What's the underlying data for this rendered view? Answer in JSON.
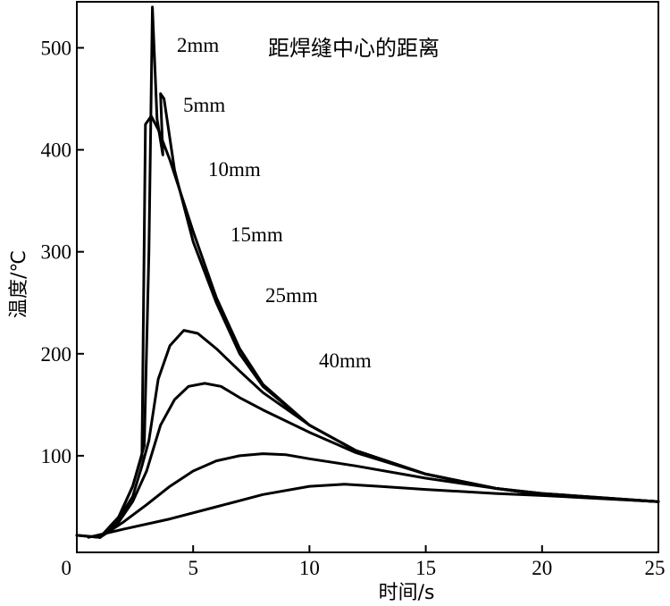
{
  "chart_data": {
    "type": "line",
    "title": "距焊缝中心的距离",
    "xlabel": "时间/s",
    "ylabel": "温度/℃",
    "xlim": [
      0,
      25
    ],
    "ylim": [
      0,
      545
    ],
    "xticks": [
      0,
      5,
      10,
      15,
      20,
      25
    ],
    "yticks": [
      100,
      200,
      300,
      400,
      500
    ],
    "grid": false,
    "legend": "none",
    "annotations": [
      "2mm",
      "5mm",
      "10mm",
      "15mm",
      "25mm",
      "40mm"
    ],
    "series": [
      {
        "name": "2mm",
        "points": [
          [
            0,
            22
          ],
          [
            1,
            20
          ],
          [
            1.8,
            40
          ],
          [
            2.4,
            70
          ],
          [
            2.9,
            110
          ],
          [
            3.1,
            300
          ],
          [
            3.25,
            540
          ],
          [
            3.45,
            430
          ],
          [
            3.7,
            395
          ],
          [
            3.6,
            455
          ],
          [
            3.75,
            450
          ],
          [
            4.2,
            380
          ],
          [
            5,
            310
          ],
          [
            6,
            250
          ],
          [
            7,
            200
          ],
          [
            8,
            168
          ],
          [
            10,
            130
          ],
          [
            12,
            105
          ],
          [
            15,
            82
          ],
          [
            18,
            68
          ],
          [
            20,
            63
          ],
          [
            25,
            55
          ]
        ]
      },
      {
        "name": "5mm",
        "points": [
          [
            0,
            22
          ],
          [
            1,
            20
          ],
          [
            1.8,
            40
          ],
          [
            2.4,
            70
          ],
          [
            2.8,
            100
          ],
          [
            2.95,
            425
          ],
          [
            3.2,
            433
          ],
          [
            3.5,
            420
          ],
          [
            4,
            390
          ],
          [
            4.5,
            355
          ],
          [
            5,
            320
          ],
          [
            6,
            255
          ],
          [
            7,
            205
          ],
          [
            8,
            170
          ],
          [
            10,
            130
          ],
          [
            12,
            105
          ],
          [
            15,
            82
          ],
          [
            18,
            68
          ],
          [
            20,
            63
          ],
          [
            25,
            55
          ]
        ]
      },
      {
        "name": "10mm",
        "points": [
          [
            1,
            20
          ],
          [
            1.8,
            38
          ],
          [
            2.4,
            60
          ],
          [
            2.8,
            90
          ],
          [
            3.1,
            115
          ],
          [
            3.5,
            175
          ],
          [
            4,
            208
          ],
          [
            4.6,
            223
          ],
          [
            5.2,
            220
          ],
          [
            6,
            205
          ],
          [
            7,
            183
          ],
          [
            8,
            162
          ],
          [
            10,
            130
          ],
          [
            12,
            105
          ],
          [
            15,
            82
          ],
          [
            18,
            68
          ],
          [
            20,
            62
          ],
          [
            25,
            55
          ]
        ]
      },
      {
        "name": "15mm",
        "points": [
          [
            1,
            20
          ],
          [
            1.8,
            35
          ],
          [
            2.4,
            55
          ],
          [
            3,
            85
          ],
          [
            3.6,
            130
          ],
          [
            4.2,
            155
          ],
          [
            4.8,
            168
          ],
          [
            5.5,
            171
          ],
          [
            6.2,
            168
          ],
          [
            7,
            157
          ],
          [
            8,
            145
          ],
          [
            10,
            123
          ],
          [
            12,
            103
          ],
          [
            15,
            82
          ],
          [
            18,
            68
          ],
          [
            20,
            62
          ],
          [
            25,
            55
          ]
        ]
      },
      {
        "name": "25mm",
        "points": [
          [
            1,
            20
          ],
          [
            2,
            35
          ],
          [
            3,
            52
          ],
          [
            4,
            70
          ],
          [
            5,
            85
          ],
          [
            6,
            95
          ],
          [
            7,
            100
          ],
          [
            8,
            102
          ],
          [
            9,
            101
          ],
          [
            10,
            97
          ],
          [
            12,
            90
          ],
          [
            15,
            78
          ],
          [
            18,
            68
          ],
          [
            20,
            62
          ],
          [
            25,
            55
          ]
        ]
      },
      {
        "name": "40mm",
        "points": [
          [
            0.5,
            20
          ],
          [
            2,
            28
          ],
          [
            4,
            38
          ],
          [
            6,
            50
          ],
          [
            8,
            62
          ],
          [
            10,
            70
          ],
          [
            11.5,
            72
          ],
          [
            13,
            70
          ],
          [
            15,
            67
          ],
          [
            18,
            63
          ],
          [
            20,
            61
          ],
          [
            25,
            55
          ]
        ]
      }
    ]
  }
}
